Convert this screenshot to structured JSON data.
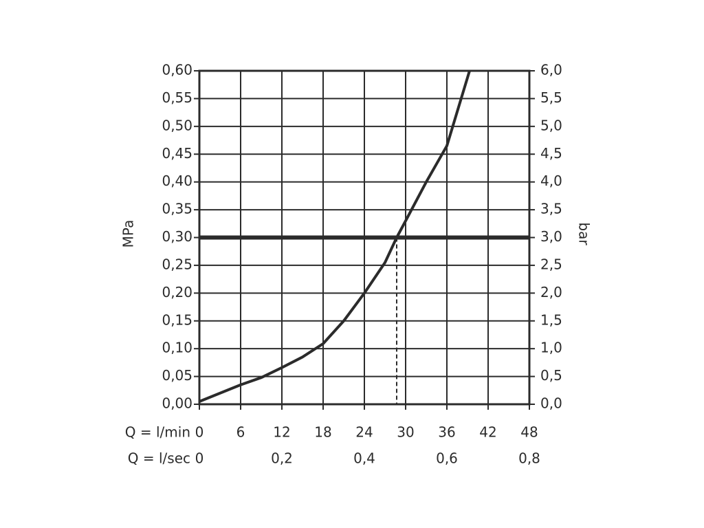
{
  "chart_data": {
    "type": "line",
    "y_label": "MPa",
    "y2_label": "bar",
    "x_label": "Q = l/min",
    "x2_label": "Q = l/sec",
    "x": [
      0,
      6,
      9,
      12,
      15,
      18,
      21,
      24,
      27,
      28.7,
      30,
      33,
      36,
      39.3
    ],
    "series": [
      {
        "color": "#2b2b2b",
        "values": [
          0.005,
          0.035,
          0.048,
          0.066,
          0.085,
          0.109,
          0.15,
          0.2,
          0.255,
          0.3,
          0.33,
          0.4,
          0.465,
          0.6
        ]
      }
    ],
    "xlim": [
      0,
      48
    ],
    "xticks": [
      0,
      6,
      12,
      18,
      24,
      30,
      36,
      42,
      48
    ],
    "x2lim": [
      0,
      0.8
    ],
    "x2ticks": [
      0,
      {
        "value": 0.2,
        "label": "0,2"
      },
      {
        "value": 0.4,
        "label": "0,4"
      },
      {
        "value": 0.6,
        "label": "0,6"
      },
      {
        "value": 0.8,
        "label": "0,8"
      }
    ],
    "ylim": [
      0,
      0.6
    ],
    "yticks": [
      {
        "value": 0,
        "label": "0,00"
      },
      {
        "value": 0.05,
        "label": "0,05"
      },
      {
        "value": 0.1,
        "label": "0,10"
      },
      {
        "value": 0.15,
        "label": "0,15"
      },
      {
        "value": 0.2,
        "label": "0,20"
      },
      {
        "value": 0.25,
        "label": "0,25"
      },
      {
        "value": 0.3,
        "label": "0,30"
      },
      {
        "value": 0.35,
        "label": "0,35"
      },
      {
        "value": 0.4,
        "label": "0,40"
      },
      {
        "value": 0.45,
        "label": "0,45"
      },
      {
        "value": 0.5,
        "label": "0,50"
      },
      {
        "value": 0.55,
        "label": "0,55"
      },
      {
        "value": 0.6,
        "label": "0,60"
      }
    ],
    "y2lim": [
      0,
      6
    ],
    "y2ticks": [
      {
        "value": 0,
        "label": "0,0"
      },
      {
        "value": 0.5,
        "label": "0,5"
      },
      {
        "value": 1,
        "label": "1,0"
      },
      {
        "value": 1.5,
        "label": "1,5"
      },
      {
        "value": 2,
        "label": "2,0"
      },
      {
        "value": 2.5,
        "label": "2,5"
      },
      {
        "value": 3,
        "label": "3,0"
      },
      {
        "value": 3.5,
        "label": "3,5"
      },
      {
        "value": 4,
        "label": "4,0"
      },
      {
        "value": 4.5,
        "label": "4,5"
      },
      {
        "value": 5,
        "label": "5,0"
      },
      {
        "value": 5.5,
        "label": "5,5"
      },
      {
        "value": 6,
        "label": "6,0"
      }
    ],
    "hline": 0.3,
    "vline": 28.7,
    "grid": true
  }
}
